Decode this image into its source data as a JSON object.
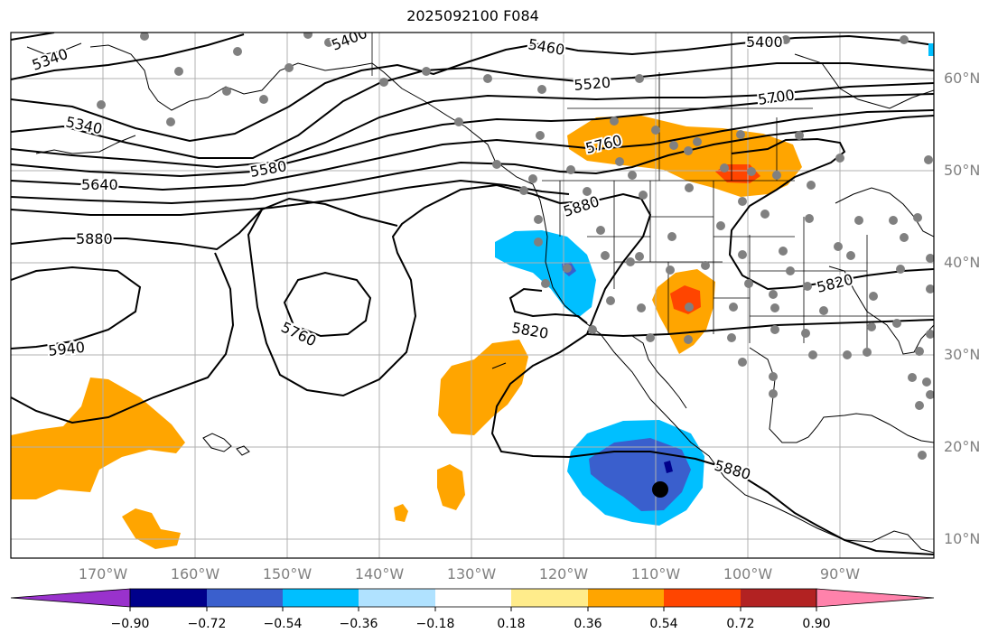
{
  "title": "2025092100 F084",
  "lat_labels": [
    "60°N",
    "50°N",
    "40°N",
    "30°N",
    "20°N",
    "10°N"
  ],
  "lon_labels": [
    "170°W",
    "160°W",
    "150°W",
    "140°W",
    "130°W",
    "120°W",
    "110°W",
    "100°W",
    "90°W"
  ],
  "colorbar": {
    "colors": [
      "#9932cc",
      "#00008b",
      "#3a5fcd",
      "#00bfff",
      "#b0e2ff",
      "#ffffff",
      "#ffec8b",
      "#ffa500",
      "#ff4500",
      "#b22222",
      "#ff82ab"
    ],
    "tick_labels": [
      "−0.90",
      "−0.72",
      "−0.54",
      "−0.36",
      "−0.18",
      "0.18",
      "0.36",
      "0.54",
      "0.72",
      "0.90"
    ]
  },
  "contour_labels": [
    "5340",
    "5340",
    "5400",
    "5460",
    "5400",
    "5520",
    "5700",
    "5760",
    "5580",
    "5640",
    "5880",
    "5880",
    "5760",
    "5820",
    "5940",
    "5820",
    "5880"
  ],
  "colors": {
    "contour": "#000000",
    "coast": "#000000",
    "grid": "#b0b0b0",
    "station": "#808080",
    "orange": "#ffa500",
    "red": "#ff4500",
    "lightblue": "#00bfff",
    "blue": "#3a5fcd",
    "navy": "#00008b"
  }
}
